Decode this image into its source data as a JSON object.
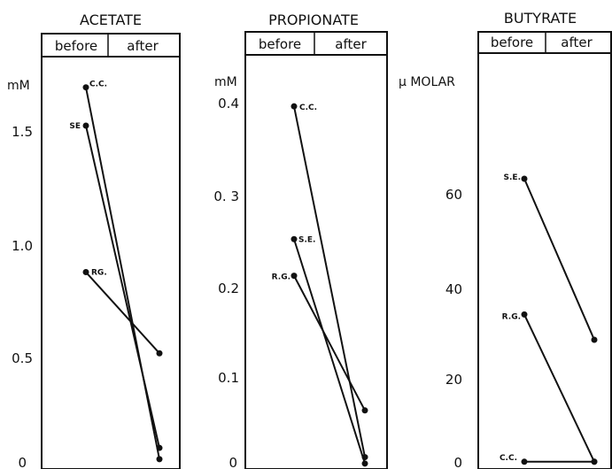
{
  "chart_data": [
    {
      "type": "line",
      "title": "ACETATE",
      "ylabel": "mM",
      "headers": [
        "before",
        "after"
      ],
      "categories": [
        "before",
        "after"
      ],
      "ylim": [
        0,
        1.8
      ],
      "yticks": [
        "0",
        "0.5",
        "1.0",
        "1.5"
      ],
      "ytick_values": [
        0,
        0.5,
        1.0,
        1.5
      ],
      "series": [
        {
          "name": "C.C.",
          "values": [
            1.67,
            0.02
          ]
        },
        {
          "name": "SE",
          "values": [
            1.5,
            0.07
          ]
        },
        {
          "name": "RG.",
          "values": [
            0.85,
            0.49
          ]
        }
      ]
    },
    {
      "type": "line",
      "title": "PROPIONATE",
      "ylabel": "mM",
      "headers": [
        "before",
        "after"
      ],
      "categories": [
        "before",
        "after"
      ],
      "ylim": [
        0,
        0.45
      ],
      "yticks": [
        "0",
        "0.1",
        "0.2",
        "0. 3",
        "0.4"
      ],
      "ytick_values": [
        0,
        0.1,
        0.2,
        0.3,
        0.4
      ],
      "series": [
        {
          "name": "C.C.",
          "values": [
            0.395,
            0.012
          ]
        },
        {
          "name": "S.E.",
          "values": [
            0.25,
            0.005
          ]
        },
        {
          "name": "R.G.",
          "values": [
            0.21,
            0.063
          ]
        }
      ]
    },
    {
      "type": "line",
      "title": "BUTYRATE",
      "ylabel": "μ MOLAR",
      "headers": [
        "before",
        "after"
      ],
      "categories": [
        "before",
        "after"
      ],
      "ylim": [
        0,
        90
      ],
      "yticks": [
        "0",
        "20",
        "40",
        "60"
      ],
      "ytick_values": [
        0,
        20,
        40,
        60
      ],
      "series": [
        {
          "name": "S.E.",
          "values": [
            62.5,
            27.5
          ]
        },
        {
          "name": "R.G.",
          "values": [
            33,
            1
          ]
        },
        {
          "name": "C.C.",
          "values": [
            1,
            1
          ]
        }
      ]
    }
  ]
}
